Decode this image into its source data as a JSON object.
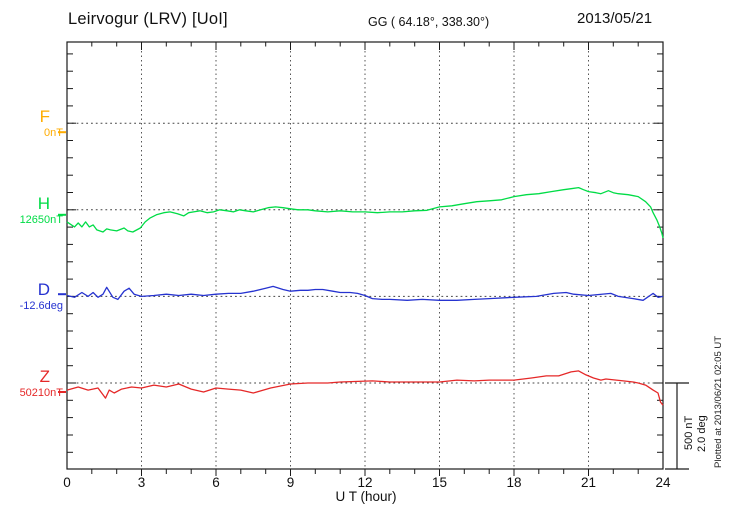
{
  "header": {
    "title": "Leirvogur (LRV)  [UoI]",
    "coordinates": "GG ( 64.18°, 338.30°)",
    "date": "2013/05/21"
  },
  "xaxis": {
    "label": "U T (hour)",
    "ticks": [
      0,
      3,
      6,
      9,
      12,
      15,
      18,
      21,
      24
    ],
    "minor_step_hours": 1,
    "range": [
      0,
      24
    ]
  },
  "scale_bar": {
    "nt_label": "500 nT",
    "deg_label": "2.0 deg"
  },
  "footer_note": "Plotted at 2013/06/21 02:05 UT",
  "colors": {
    "F": "#FFAC00",
    "H": "#00DC46",
    "D": "#2633D0",
    "Z": "#E52828",
    "frame": "#1a1a1a",
    "grid": "#555555",
    "baseline": "#444444",
    "text": "#111111"
  },
  "chart_data": {
    "type": "line",
    "title": "Leirvogur (LRV) magnetogram, 2013/05/21",
    "xlabel": "U T (hour)",
    "x_range": [
      0,
      24
    ],
    "grid": "dotted vertical lines every 3 hours; dotted horizontal baseline per component",
    "legend_position": "left margin, one colored letter per stacked component",
    "scale": {
      "nT_per_baseline_gap": 500,
      "deg_per_baseline_gap": 2.0
    },
    "note": "points are [hour UT, offset from baseline value]; F trace not visible (flat/absent), only its left-edge marker",
    "series": [
      {
        "name": "F",
        "baseline_label": "0nT",
        "baseline_value": 0,
        "unit": "nT",
        "edge_marker": -52,
        "points": []
      },
      {
        "name": "H",
        "baseline_label": "12650nT",
        "baseline_value": 12650,
        "unit": "nT",
        "edge_marker": -29,
        "points": [
          [
            0,
            -70
          ],
          [
            0.3,
            -99
          ],
          [
            0.45,
            -76
          ],
          [
            0.6,
            -99
          ],
          [
            0.75,
            -70
          ],
          [
            0.9,
            -99
          ],
          [
            1.05,
            -87
          ],
          [
            1.2,
            -116
          ],
          [
            1.45,
            -128
          ],
          [
            1.6,
            -110
          ],
          [
            1.75,
            -116
          ],
          [
            2.0,
            -122
          ],
          [
            2.3,
            -105
          ],
          [
            2.45,
            -122
          ],
          [
            2.65,
            -128
          ],
          [
            2.95,
            -105
          ],
          [
            3.15,
            -70
          ],
          [
            3.35,
            -47
          ],
          [
            3.6,
            -29
          ],
          [
            3.9,
            -17
          ],
          [
            4.15,
            -12
          ],
          [
            4.45,
            -23
          ],
          [
            4.7,
            -35
          ],
          [
            4.9,
            -17
          ],
          [
            5.1,
            -12
          ],
          [
            5.35,
            -6
          ],
          [
            5.65,
            -17
          ],
          [
            5.9,
            -12
          ],
          [
            6.15,
            0
          ],
          [
            6.45,
            -6
          ],
          [
            6.7,
            -12
          ],
          [
            6.95,
            0
          ],
          [
            7.2,
            -6
          ],
          [
            7.5,
            -12
          ],
          [
            7.8,
            0
          ],
          [
            8.1,
            12
          ],
          [
            8.4,
            17
          ],
          [
            8.7,
            12
          ],
          [
            9.0,
            6
          ],
          [
            9.3,
            0
          ],
          [
            9.7,
            0
          ],
          [
            10.0,
            -6
          ],
          [
            10.5,
            -12
          ],
          [
            11.0,
            -6
          ],
          [
            11.5,
            -12
          ],
          [
            12.0,
            -12
          ],
          [
            12.5,
            -17
          ],
          [
            13.0,
            -12
          ],
          [
            13.5,
            -12
          ],
          [
            14.0,
            -6
          ],
          [
            14.5,
            -3
          ],
          [
            15.0,
            17
          ],
          [
            15.5,
            23
          ],
          [
            16.0,
            35
          ],
          [
            16.5,
            47
          ],
          [
            17.0,
            52
          ],
          [
            17.5,
            58
          ],
          [
            18.0,
            76
          ],
          [
            18.5,
            87
          ],
          [
            19.0,
            93
          ],
          [
            19.5,
            105
          ],
          [
            20.0,
            116
          ],
          [
            20.3,
            122
          ],
          [
            20.6,
            128
          ],
          [
            20.8,
            116
          ],
          [
            21.0,
            105
          ],
          [
            21.3,
            99
          ],
          [
            21.5,
            93
          ],
          [
            21.8,
            110
          ],
          [
            22.0,
            99
          ],
          [
            22.2,
            93
          ],
          [
            22.6,
            87
          ],
          [
            23.0,
            76
          ],
          [
            23.3,
            47
          ],
          [
            23.5,
            17
          ],
          [
            23.6,
            -17
          ],
          [
            23.75,
            -58
          ],
          [
            23.85,
            -93
          ],
          [
            23.95,
            -134
          ],
          [
            24.0,
            -163
          ]
        ]
      },
      {
        "name": "D",
        "baseline_label": "-12.6deg",
        "baseline_value": -12.6,
        "unit": "deg",
        "edge_marker": 0.05,
        "points": [
          [
            0,
            0.02
          ],
          [
            0.3,
            -0.02
          ],
          [
            0.6,
            0.09
          ],
          [
            0.85,
            0.0
          ],
          [
            1.05,
            0.09
          ],
          [
            1.25,
            -0.02
          ],
          [
            1.45,
            0.05
          ],
          [
            1.6,
            0.21
          ],
          [
            1.85,
            -0.02
          ],
          [
            2.05,
            -0.07
          ],
          [
            2.3,
            0.12
          ],
          [
            2.5,
            0.19
          ],
          [
            2.7,
            0.05
          ],
          [
            3.0,
            0.0
          ],
          [
            3.5,
            0.02
          ],
          [
            4.0,
            0.05
          ],
          [
            4.5,
            0.02
          ],
          [
            5.0,
            0.05
          ],
          [
            5.5,
            0.02
          ],
          [
            6.0,
            0.05
          ],
          [
            6.5,
            0.07
          ],
          [
            7.0,
            0.07
          ],
          [
            7.5,
            0.12
          ],
          [
            8.0,
            0.19
          ],
          [
            8.3,
            0.23
          ],
          [
            8.7,
            0.16
          ],
          [
            9.0,
            0.12
          ],
          [
            9.4,
            0.14
          ],
          [
            9.7,
            0.14
          ],
          [
            10.0,
            0.16
          ],
          [
            10.3,
            0.16
          ],
          [
            10.7,
            0.12
          ],
          [
            11.0,
            0.09
          ],
          [
            11.4,
            0.09
          ],
          [
            11.7,
            0.07
          ],
          [
            12.0,
            0.02
          ],
          [
            12.3,
            -0.05
          ],
          [
            12.7,
            -0.07
          ],
          [
            13.0,
            -0.07
          ],
          [
            13.7,
            -0.09
          ],
          [
            14.3,
            -0.07
          ],
          [
            15.0,
            -0.09
          ],
          [
            15.7,
            -0.09
          ],
          [
            16.4,
            -0.07
          ],
          [
            17.0,
            -0.05
          ],
          [
            18.0,
            -0.02
          ],
          [
            18.9,
            0.0
          ],
          [
            19.6,
            0.07
          ],
          [
            20.1,
            0.09
          ],
          [
            20.4,
            0.05
          ],
          [
            21.0,
            0.02
          ],
          [
            21.9,
            0.07
          ],
          [
            22.2,
            0.0
          ],
          [
            22.8,
            -0.05
          ],
          [
            23.2,
            -0.09
          ],
          [
            23.6,
            0.07
          ],
          [
            23.8,
            -0.02
          ],
          [
            24.0,
            0.0
          ]
        ]
      },
      {
        "name": "Z",
        "baseline_label": "50210nT",
        "baseline_value": 50210,
        "unit": "nT",
        "edge_marker": -52,
        "points": [
          [
            0,
            -41
          ],
          [
            0.45,
            -23
          ],
          [
            0.85,
            -41
          ],
          [
            1.25,
            -29
          ],
          [
            1.55,
            -87
          ],
          [
            1.7,
            -41
          ],
          [
            1.9,
            -58
          ],
          [
            2.2,
            -35
          ],
          [
            2.6,
            -23
          ],
          [
            3.0,
            -29
          ],
          [
            3.5,
            -12
          ],
          [
            4.0,
            -23
          ],
          [
            4.5,
            -6
          ],
          [
            5.0,
            -35
          ],
          [
            5.5,
            -52
          ],
          [
            6.0,
            -29
          ],
          [
            6.5,
            -35
          ],
          [
            7.0,
            -41
          ],
          [
            7.5,
            -58
          ],
          [
            8.2,
            -29
          ],
          [
            9.0,
            -6
          ],
          [
            9.7,
            0
          ],
          [
            10.5,
            0
          ],
          [
            11.0,
            6
          ],
          [
            12.3,
            12
          ],
          [
            13.0,
            6
          ],
          [
            13.7,
            6
          ],
          [
            15.0,
            6
          ],
          [
            15.7,
            17
          ],
          [
            16.4,
            12
          ],
          [
            17.0,
            17
          ],
          [
            18.0,
            17
          ],
          [
            18.7,
            29
          ],
          [
            19.3,
            41
          ],
          [
            19.8,
            41
          ],
          [
            20.3,
            64
          ],
          [
            20.6,
            70
          ],
          [
            20.9,
            47
          ],
          [
            21.2,
            29
          ],
          [
            21.5,
            17
          ],
          [
            21.7,
            23
          ],
          [
            22.4,
            12
          ],
          [
            22.8,
            6
          ],
          [
            23.0,
            0
          ],
          [
            23.3,
            -12
          ],
          [
            23.6,
            -41
          ],
          [
            23.8,
            -58
          ],
          [
            23.9,
            -110
          ],
          [
            24.0,
            -128
          ]
        ]
      }
    ]
  }
}
